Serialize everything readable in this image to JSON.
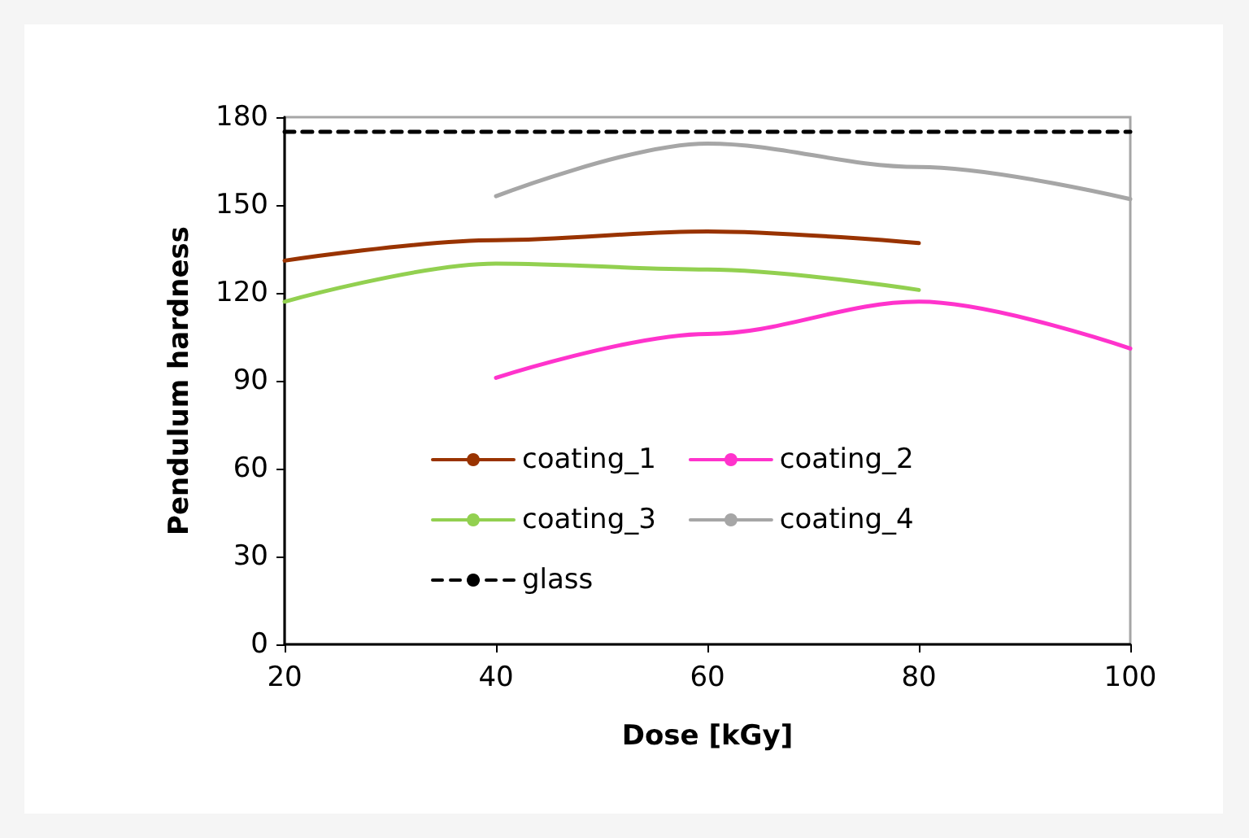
{
  "chart_data": {
    "type": "line",
    "xlabel": "Dose [kGy]",
    "ylabel": "Pendulum hardness",
    "xlim": [
      20,
      100
    ],
    "xticks": [
      20,
      40,
      60,
      80,
      100
    ],
    "ylim": [
      0,
      180
    ],
    "yticks": [
      0,
      30,
      60,
      90,
      120,
      150,
      180
    ],
    "grid": false,
    "legend": "bottom left",
    "marker": "none",
    "line_style": "solid",
    "series": [
      {
        "name": "coating_1",
        "color": "#993300",
        "x": [
          20,
          40,
          60,
          80
        ],
        "values": [
          131,
          138,
          141,
          137
        ]
      },
      {
        "name": "coating_2",
        "color": "#ff33cc",
        "x": [
          40,
          60,
          80,
          100
        ],
        "values": [
          91,
          106,
          117,
          101
        ]
      },
      {
        "name": "coating_3",
        "color": "#92d050",
        "x": [
          20,
          40,
          60,
          80
        ],
        "values": [
          117,
          130,
          128,
          121
        ]
      },
      {
        "name": "coating_4",
        "color": "#a6a6a6",
        "x": [
          40,
          60,
          80,
          100
        ],
        "values": [
          153,
          171,
          163,
          152
        ]
      },
      {
        "name": "glass",
        "color": "#000000",
        "x": [
          20,
          100
        ],
        "values": [
          175,
          175
        ],
        "line_style": "dashed"
      }
    ]
  }
}
